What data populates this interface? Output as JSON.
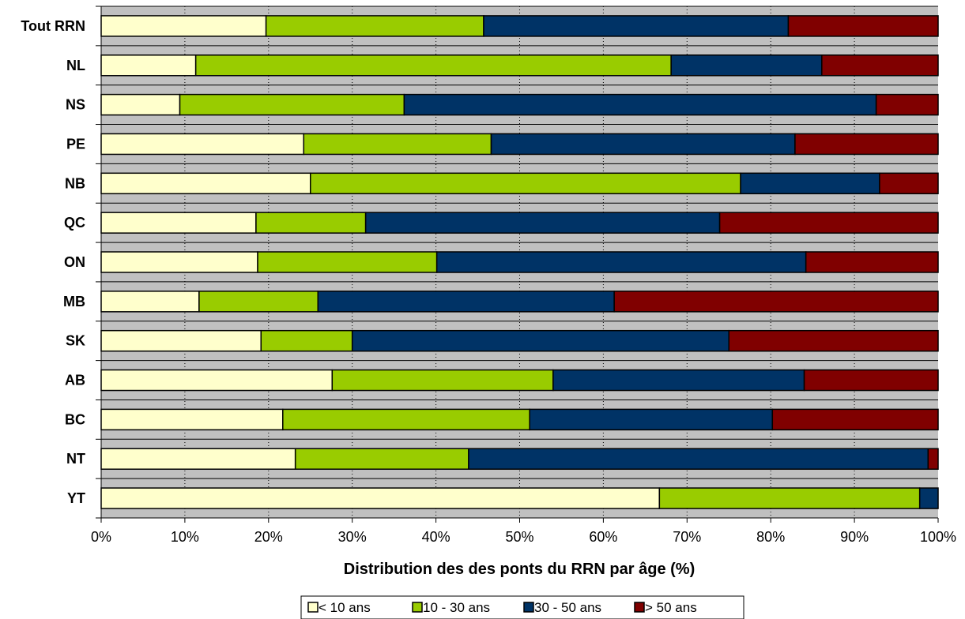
{
  "chart_data": {
    "type": "bar",
    "orientation": "horizontal",
    "stacked": "percent",
    "categories": [
      "Tout RRN",
      "NL",
      "NS",
      "PE",
      "NB",
      "QC",
      "ON",
      "MB",
      "SK",
      "AB",
      "BC",
      "NT",
      "YT"
    ],
    "series": [
      {
        "name": "< 10 ans",
        "color": "#ffffcc",
        "values": [
          19.7,
          11.3,
          9.4,
          24.2,
          25.0,
          18.5,
          18.7,
          11.7,
          19.1,
          27.6,
          21.7,
          23.2,
          66.7
        ]
      },
      {
        "name": "10 - 30 ans",
        "color": "#99cc00",
        "values": [
          26.0,
          56.8,
          26.8,
          22.4,
          51.4,
          13.1,
          21.4,
          14.2,
          10.9,
          26.4,
          29.5,
          20.7,
          31.1
        ]
      },
      {
        "name": "30 - 50 ans",
        "color": "#003366",
        "values": [
          36.4,
          18.0,
          56.4,
          36.3,
          16.6,
          42.3,
          44.1,
          35.4,
          45.0,
          30.0,
          29.0,
          54.9,
          2.2
        ]
      },
      {
        "name": "> 50 ans",
        "color": "#800000",
        "values": [
          17.9,
          13.9,
          7.4,
          17.1,
          7.0,
          26.1,
          15.8,
          38.7,
          25.0,
          16.0,
          19.8,
          1.2,
          0.0
        ]
      }
    ],
    "x_ticks": [
      "0%",
      "10%",
      "20%",
      "30%",
      "40%",
      "50%",
      "60%",
      "70%",
      "80%",
      "90%",
      "100%"
    ],
    "xlim": [
      0,
      100
    ],
    "xlabel": "Distribution des des ponts du RRN par âge (%)",
    "ylabel": "",
    "title": "",
    "grid": true,
    "plot_background": "#c0c0c0",
    "legend_position": "bottom"
  }
}
